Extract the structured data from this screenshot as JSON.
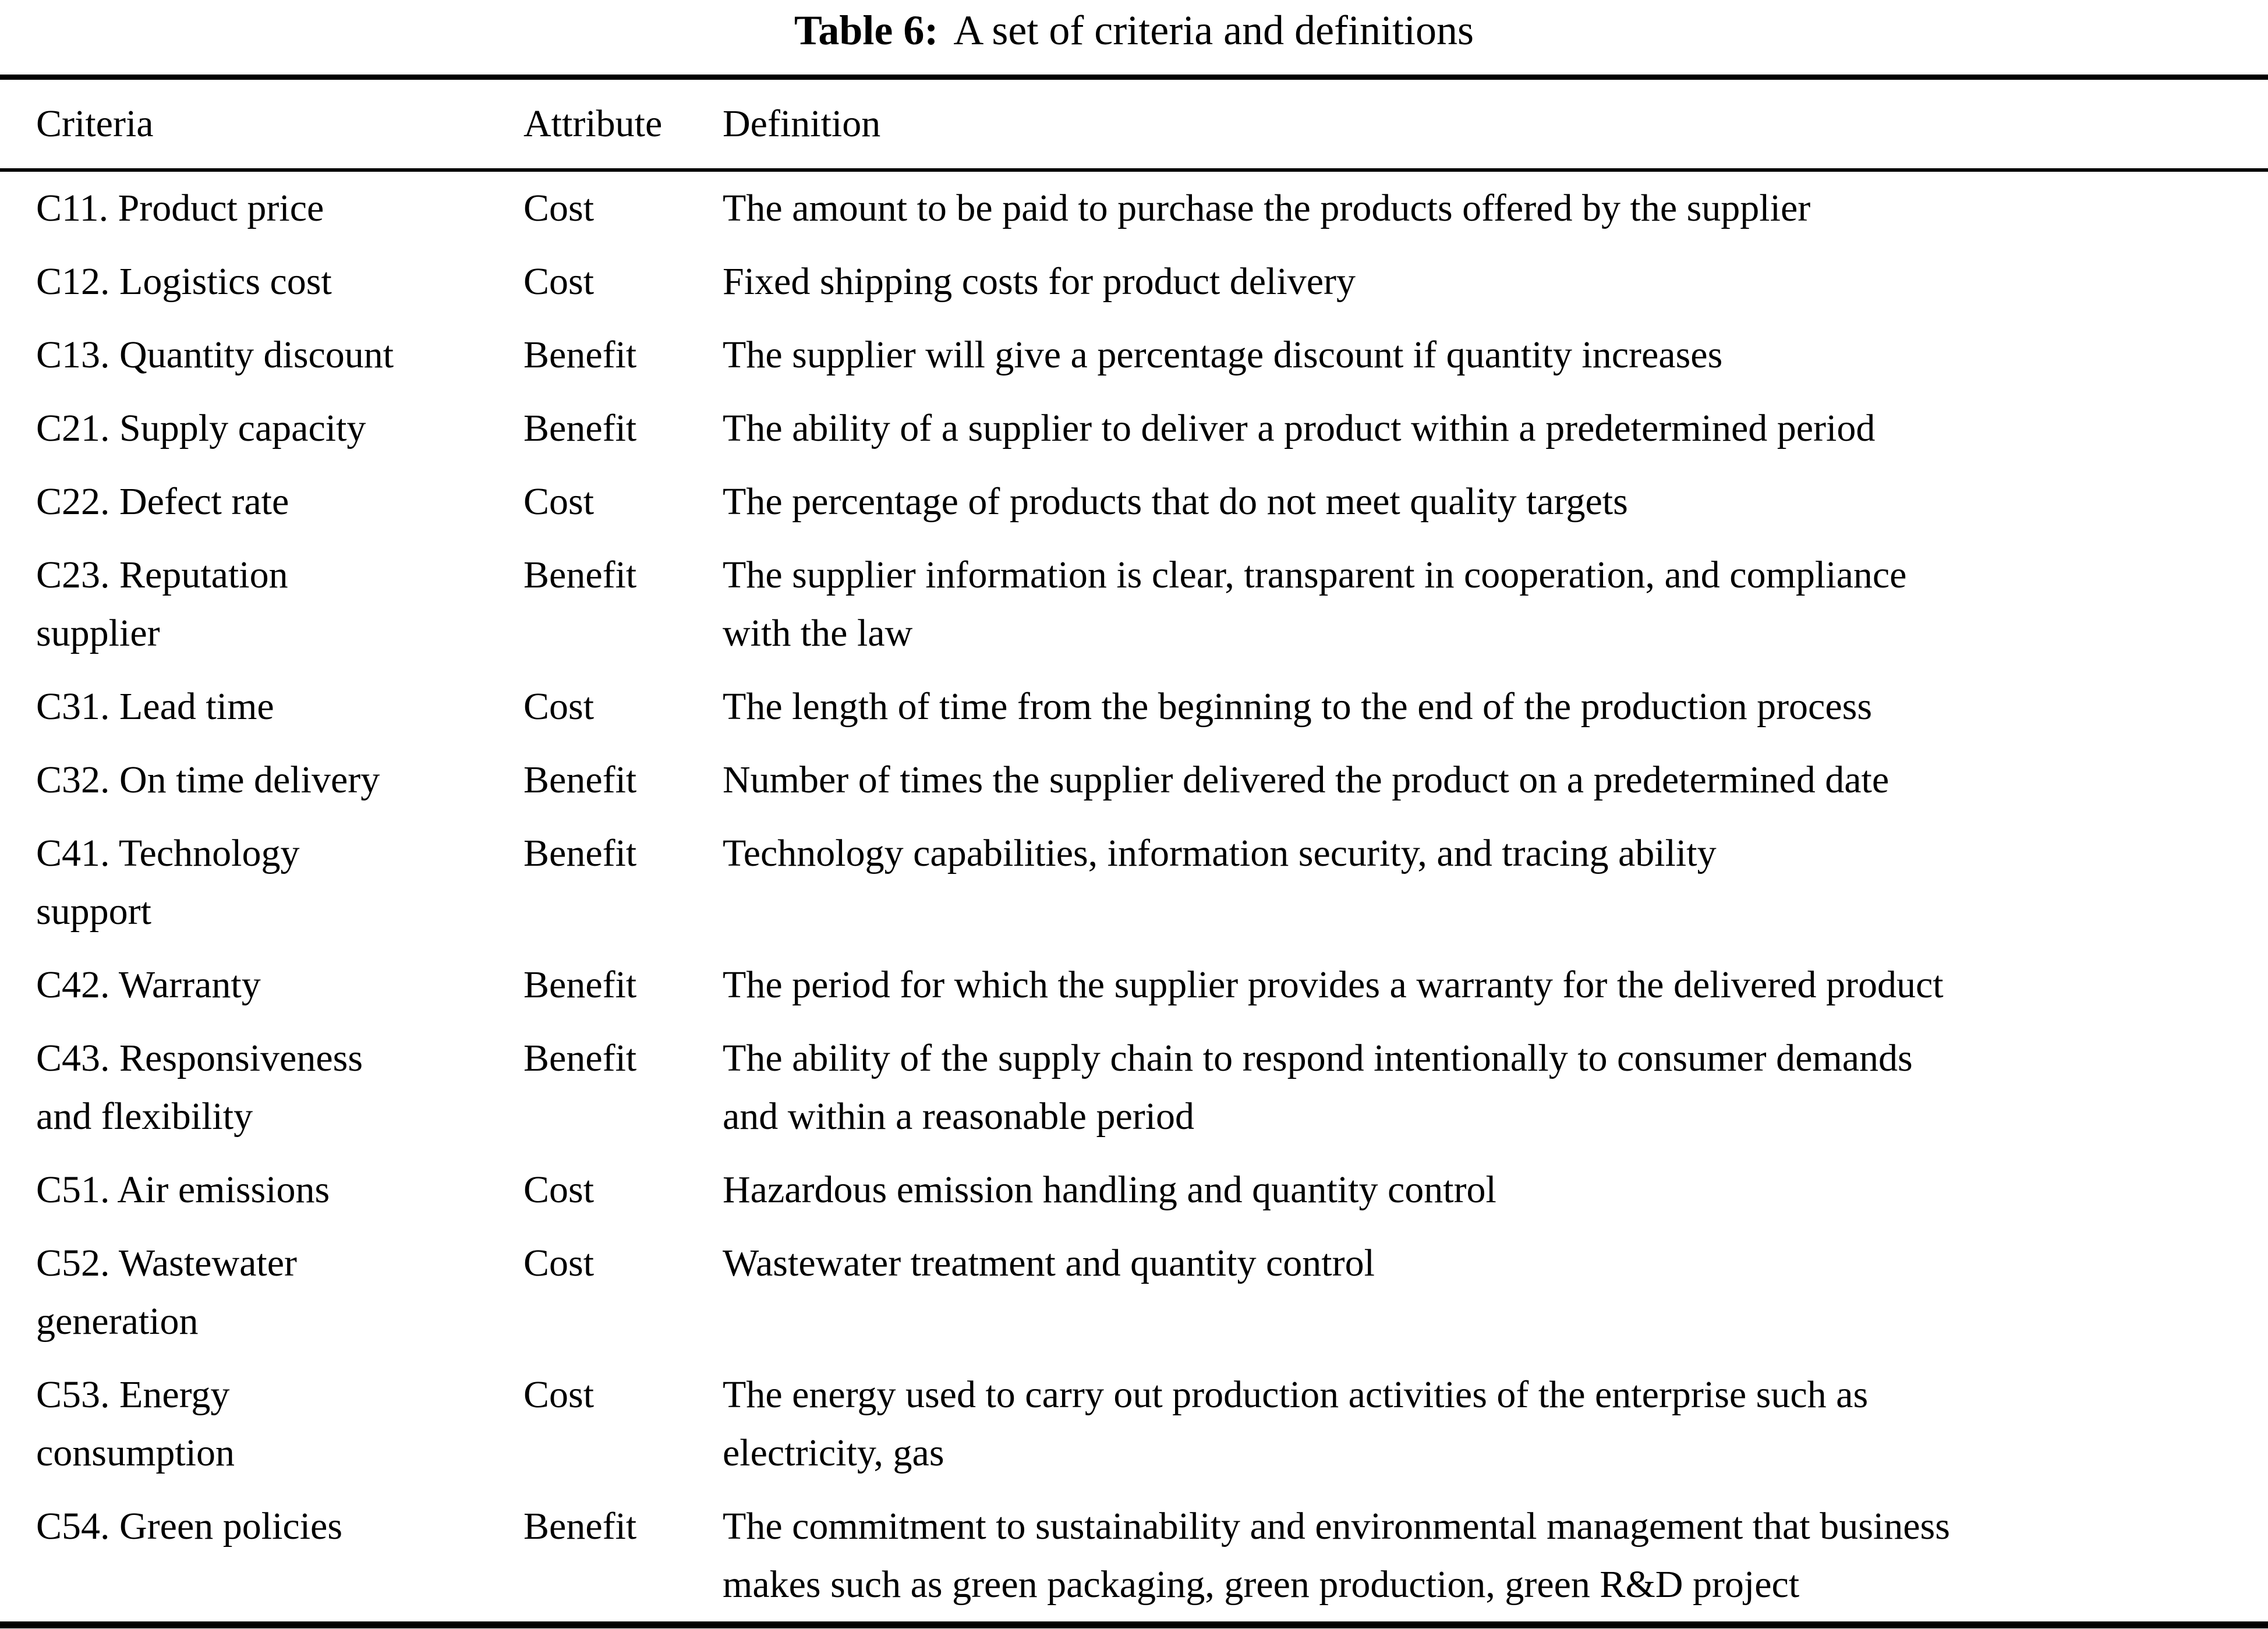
{
  "caption": {
    "label": "Table 6:",
    "text": "A set of criteria and definitions"
  },
  "table": {
    "headers": [
      "Criteria",
      "Attribute",
      "Definition"
    ],
    "rows": [
      {
        "criteria": "C11. Product price",
        "attribute": "Cost",
        "definition": "The amount to be paid to purchase the products offered by the supplier"
      },
      {
        "criteria": "C12. Logistics cost",
        "attribute": "Cost",
        "definition": "Fixed shipping costs for product delivery"
      },
      {
        "criteria": "C13. Quantity discount",
        "attribute": "Benefit",
        "definition": "The supplier will give a percentage discount if quantity increases"
      },
      {
        "criteria": "C21. Supply capacity",
        "attribute": "Benefit",
        "definition": "The ability of a supplier to deliver a product within a predetermined period"
      },
      {
        "criteria": "C22. Defect rate",
        "attribute": "Cost",
        "definition": "The percentage of products that do not meet quality targets"
      },
      {
        "criteria": "C23. Reputation\nsupplier",
        "attribute": "Benefit",
        "definition": "The supplier information is clear, transparent in cooperation, and compliance\nwith the law"
      },
      {
        "criteria": "C31. Lead time",
        "attribute": "Cost",
        "definition": "The length of time from the beginning to the end of the production process"
      },
      {
        "criteria": "C32. On time delivery",
        "attribute": "Benefit",
        "definition": "Number of times the supplier delivered the product on a predetermined date"
      },
      {
        "criteria": "C41. Technology\nsupport",
        "attribute": "Benefit",
        "definition": "Technology capabilities, information security, and tracing ability"
      },
      {
        "criteria": "C42. Warranty",
        "attribute": "Benefit",
        "definition": "The period for which the supplier provides a warranty for the delivered product"
      },
      {
        "criteria": "C43. Responsiveness\nand flexibility",
        "attribute": "Benefit",
        "definition": "The ability of the supply chain to respond intentionally to consumer demands\nand within a reasonable period"
      },
      {
        "criteria": "C51. Air emissions",
        "attribute": "Cost",
        "definition": "Hazardous emission handling and quantity control"
      },
      {
        "criteria": "C52. Wastewater\ngeneration",
        "attribute": "Cost",
        "definition": "Wastewater treatment and quantity control"
      },
      {
        "criteria": "C53. Energy\nconsumption",
        "attribute": "Cost",
        "definition": "The energy used to carry out production activities of the enterprise such as\nelectricity, gas"
      },
      {
        "criteria": "C54. Green policies",
        "attribute": "Benefit",
        "definition": "The commitment to sustainability and environmental management that business\nmakes such as green packaging, green production, green R&D project"
      }
    ]
  },
  "colors": {
    "text": "#000000",
    "background": "#ffffff",
    "rule": "#000000"
  }
}
